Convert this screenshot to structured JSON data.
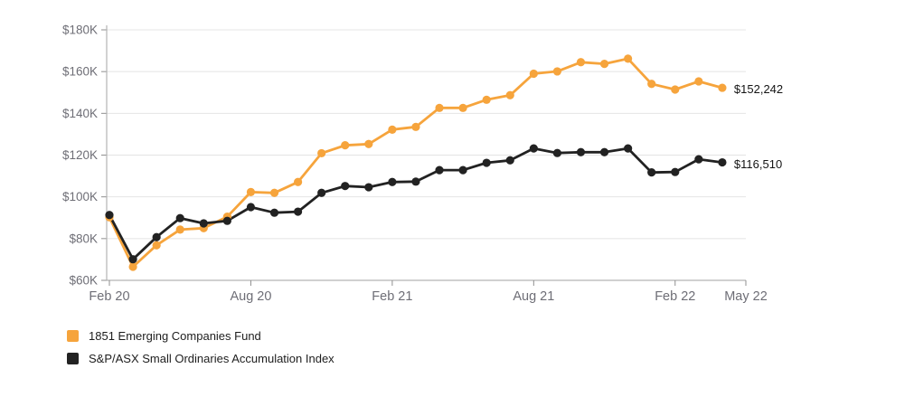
{
  "chart_data": {
    "type": "line",
    "title": "",
    "grid": true,
    "legend_position": "bottom-left",
    "x_axis": {
      "months_span": 27,
      "ticks": [
        {
          "label": "Feb 20",
          "month_index": 0
        },
        {
          "label": "Aug 20",
          "month_index": 6
        },
        {
          "label": "Feb 21",
          "month_index": 12
        },
        {
          "label": "Aug 21",
          "month_index": 18
        },
        {
          "label": "Feb 22",
          "month_index": 24
        },
        {
          "label": "May 22",
          "month_index": 27
        }
      ]
    },
    "y_axis": {
      "ylim": [
        60000,
        180000
      ],
      "ticks": [
        {
          "label": "$180K",
          "value": 180000
        },
        {
          "label": "$160K",
          "value": 160000
        },
        {
          "label": "$140K",
          "value": 140000
        },
        {
          "label": "$120K",
          "value": 120000
        },
        {
          "label": "$100K",
          "value": 100000
        },
        {
          "label": "$80K",
          "value": 80000
        },
        {
          "label": "$60K",
          "value": 60000
        }
      ]
    },
    "series": [
      {
        "name": "1851 Emerging Companies Fund",
        "color": "#F6A43C",
        "end_label": "$152,242",
        "final_value": 152242,
        "values": [
          90200,
          66500,
          76800,
          84300,
          85000,
          90500,
          102300,
          101900,
          107100,
          120900,
          124700,
          125300,
          132200,
          133500,
          142600,
          142600,
          146500,
          148700,
          159000,
          160100,
          164500,
          163700,
          166200,
          154100,
          151400,
          155300,
          152242
        ]
      },
      {
        "name": "S&P/ASX Small Ordinaries Accumulation Index",
        "color": "#222222",
        "end_label": "$116,510",
        "final_value": 116510,
        "values": [
          91300,
          70100,
          80700,
          89800,
          87300,
          88500,
          95100,
          92400,
          92900,
          101900,
          105200,
          104600,
          107100,
          107300,
          112800,
          112800,
          116300,
          117500,
          123200,
          121000,
          121400,
          121400,
          123200,
          111700,
          111900,
          118000,
          116510
        ]
      }
    ],
    "colors": {
      "grid_line": "#E4E4E4",
      "axis_line": "#B3B3B3",
      "tick_mark": "#8F8F8F",
      "tick_label": "#6E6E76",
      "value_label": "#141414"
    }
  }
}
